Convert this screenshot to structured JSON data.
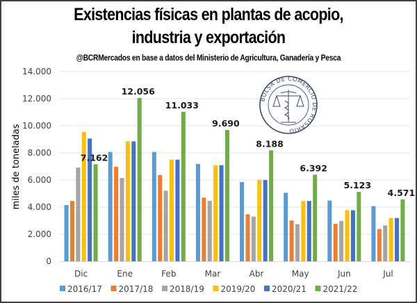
{
  "header": {
    "title_line1": "Existencias físicas en plantas de acopio,",
    "title_line2": "industria y exportación",
    "subtitle": "@BCRMercados  en base a datos del Ministerio de Agricultura,  Ganadería y Pesca"
  },
  "seal": {
    "text": "BOLSA DE COMERCIO DE ROSARIO"
  },
  "chart_data": {
    "type": "bar",
    "title": "Existencias físicas en plantas de acopio, industria y exportación",
    "subtitle": "@BCRMercados  en base a datos del Ministerio de Agricultura,  Ganadería y Pesca",
    "xlabel": "",
    "ylabel": "miles de toneladas",
    "ylim": [
      0,
      14000
    ],
    "yticks": [
      0,
      2000,
      4000,
      6000,
      8000,
      10000,
      12000,
      14000
    ],
    "ytick_labels": [
      "0",
      "2.000",
      "4.000",
      "6.000",
      "8.000",
      "10.000",
      "12.000",
      "14.000"
    ],
    "grid": true,
    "legend_position": "bottom",
    "categories": [
      "Dic",
      "Ene",
      "Feb",
      "Mar",
      "Abr",
      "May",
      "Jun",
      "Jul"
    ],
    "series": [
      {
        "name": "2016/17",
        "color": "#5B9BD5",
        "values": [
          4150,
          8070,
          8070,
          7180,
          5850,
          5060,
          4480,
          4070
        ]
      },
      {
        "name": "2017/18",
        "color": "#ED7D31",
        "values": [
          4450,
          6970,
          6370,
          4700,
          3470,
          3010,
          2760,
          2380
        ]
      },
      {
        "name": "2018/19",
        "color": "#A5A5A5",
        "values": [
          6920,
          6150,
          5210,
          4460,
          3300,
          2740,
          2970,
          2650
        ]
      },
      {
        "name": "2019/20",
        "color": "#FFC000",
        "values": [
          9540,
          8850,
          7500,
          7090,
          6000,
          4450,
          3770,
          3190
        ]
      },
      {
        "name": "2020/21",
        "color": "#4472C4",
        "values": [
          9060,
          8850,
          7500,
          7090,
          6000,
          4450,
          3770,
          3190
        ]
      },
      {
        "name": "2021/22",
        "color": "#70AD47",
        "values": [
          7162,
          12056,
          11033,
          9690,
          8188,
          6392,
          5123,
          4571
        ]
      }
    ],
    "data_labels": {
      "series": "2021/22",
      "labels": [
        "7.162",
        "12.056",
        "11.033",
        "9.690",
        "8.188",
        "6.392",
        "5.123",
        "4.571"
      ]
    }
  }
}
